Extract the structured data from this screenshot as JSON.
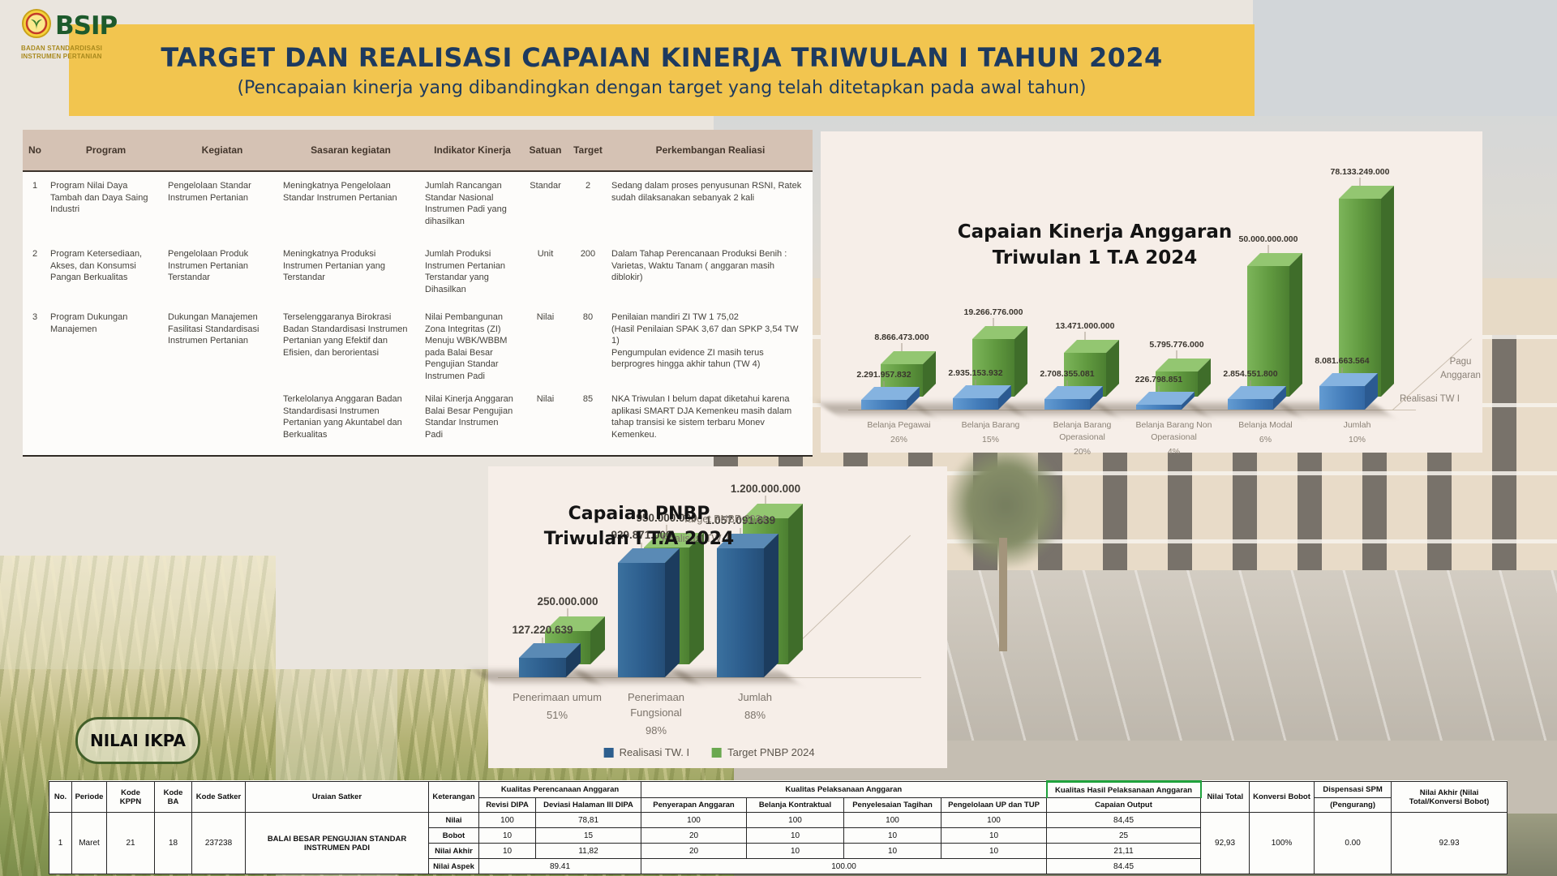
{
  "logo": {
    "acronym": "BSIP",
    "org_line1": "BADAN STANDARDISASI",
    "org_line2": "INSTRUMEN PERTANIAN"
  },
  "banner": {
    "title": "TARGET DAN REALISASI CAPAIAN KINERJA TRIWULAN I TAHUN 2024",
    "subtitle": "(Pencapaian kinerja yang dibandingkan dengan target yang telah ditetapkan pada awal tahun)"
  },
  "kinerja_table": {
    "columns": [
      "No",
      "Program",
      "Kegiatan",
      "Sasaran kegiatan",
      "Indikator Kinerja",
      "Satuan",
      "Target",
      "Perkembangan Realiasi"
    ],
    "rows": [
      {
        "no": "1",
        "program": "Program Nilai Daya Tambah dan Daya Saing Industri",
        "kegiatan": "Pengelolaan Standar Instrumen Pertanian",
        "sasaran": "Meningkatnya Pengelolaan Standar Instrumen Pertanian",
        "indikator": "Jumlah Rancangan Standar Nasional Instrumen Padi yang dihasilkan",
        "satuan": "Standar",
        "target": "2",
        "realisasi": "Sedang dalam proses penyusunan RSNI, Ratek sudah dilaksanakan sebanyak 2 kali"
      },
      {
        "no": "2",
        "program": "Program Ketersediaan, Akses, dan Konsumsi Pangan Berkualitas",
        "kegiatan": "Pengelolaan Produk Instrumen Pertanian Terstandar",
        "sasaran": "Meningkatnya Produksi Instrumen Pertanian yang Terstandar",
        "indikator": "Jumlah Produksi Instrumen Pertanian Terstandar yang Dihasilkan",
        "satuan": "Unit",
        "target": "200",
        "realisasi": "Dalam Tahap Perencanaan Produksi Benih : Varietas, Waktu Tanam ( anggaran masih diblokir)"
      },
      {
        "no": "3",
        "program": "Program Dukungan Manajemen",
        "kegiatan": "Dukungan Manajemen Fasilitasi Standardisasi Instrumen Pertanian",
        "sasaran": "Terselenggaranya Birokrasi Badan Standardisasi Instrumen Pertanian yang Efektif dan Efisien, dan berorientasi",
        "indikator": "Nilai Pembangunan Zona Integritas (ZI) Menuju WBK/WBBM pada Balai Besar Pengujian Standar Instrumen Padi",
        "satuan": "Nilai",
        "target": "80",
        "realisasi": "Penilaian mandiri ZI TW 1 75,02\n(Hasil Penilaian SPAK 3,67 dan SPKP 3,54 TW 1)\nPengumpulan evidence ZI masih terus berprogres hingga akhir tahun (TW 4)"
      },
      {
        "no": "",
        "program": "",
        "kegiatan": "",
        "sasaran": "Terkelolanya Anggaran Badan Standardisasi Instrumen Pertanian yang Akuntabel dan Berkualitas",
        "indikator": "Nilai Kinerja Anggaran Balai Besar Pengujian Standar Instrumen Padi",
        "satuan": "Nilai",
        "target": "85",
        "realisasi": "NKA Triwulan I belum dapat diketahui karena aplikasi SMART DJA Kemenkeu masih dalam tahap transisi ke sistem terbaru Monev Kemenkeu."
      }
    ]
  },
  "chart_data": [
    {
      "type": "bar",
      "style": "3d-bar",
      "title": "Capaian Kinerja Anggaran\nTriwulan 1 T.A 2024",
      "categories": [
        "Belanja Pegawai",
        "Belanja Barang",
        "Belanja Barang Operasional",
        "Belanja Barang Non Operasional",
        "Belanja Modal",
        "Jumlah"
      ],
      "category_pcts": [
        "26%",
        "15%",
        "20%",
        "4%",
        "6%",
        "10%"
      ],
      "series": [
        {
          "name": "Pagu Anggaran",
          "color": "#6aa84f",
          "values": [
            8866473000,
            19266776000,
            13471000000,
            5795776000,
            50000000000,
            78133249000
          ],
          "labels": [
            "8.866.473.000",
            "19.266.776.000",
            "13.471.000.000",
            "5.795.776.000",
            "50.000.000.000",
            "78.133.249.000"
          ]
        },
        {
          "name": "Realisasi TW I",
          "color": "#4a86c8",
          "values": [
            2291957832,
            2935153932,
            2708355081,
            226798851,
            2854551800,
            8081663564
          ],
          "labels": [
            "2.291.957.832",
            "2.935.153.932",
            "2.708.355.081",
            "226.798.851",
            "2.854.551.800",
            "8.081.663.564"
          ]
        }
      ],
      "legend_position": "right-depth-axis",
      "ylim": [
        0,
        78133249000
      ],
      "grid": false
    },
    {
      "type": "bar",
      "style": "3d-bar",
      "title": "Capaian PNBP\nTriwulan I T.A 2024",
      "categories": [
        "Penerimaan umum",
        "Penerimaan Fungsional",
        "Jumlah"
      ],
      "category_pcts": [
        "51%",
        "98%",
        "88%"
      ],
      "series": [
        {
          "name": "Realisasi TW. I",
          "color": "#2e5f8e",
          "values": [
            127220639,
            929871000,
            1057091639
          ],
          "labels": [
            "127.220.639",
            "929.871.000",
            "1.057.091.639"
          ]
        },
        {
          "name": "Target PNBP 2024",
          "color": "#6aa84f",
          "values": [
            250000000,
            950000000,
            1200000000
          ],
          "labels": [
            "250.000.000",
            "950.000.000",
            "1.200.000.000"
          ]
        }
      ],
      "legend_position": "bottom",
      "ylim": [
        0,
        1200000000
      ],
      "grid": false
    }
  ],
  "ikpa": {
    "badge": "NILAI IKPA"
  },
  "ikpa_table": {
    "group_headers": {
      "perencanaan": "Kualitas Perencanaan Anggaran",
      "pelaksanaan": "Kualitas Pelaksanaan Anggaran",
      "hasil": "Kualitas Hasil Pelaksanaan Anggaran"
    },
    "columns": {
      "no": "No.",
      "periode": "Periode",
      "kode_kppn": "Kode KPPN",
      "kode_ba": "Kode BA",
      "kode_satker": "Kode Satker",
      "uraian": "Uraian Satker",
      "keterangan": "Keterangan",
      "revisi": "Revisi DIPA",
      "deviasi": "Deviasi Halaman III DIPA",
      "penyerapan": "Penyerapan Anggaran",
      "kontraktual": "Belanja Kontraktual",
      "tagihan": "Penyelesaian Tagihan",
      "up_tup": "Pengelolaan UP dan TUP",
      "capaian": "Capaian Output",
      "nilai_total": "Nilai Total",
      "konversi": "Konversi Bobot",
      "dispensasi": "Dispensasi SPM",
      "pengurang": "(Pengurang)",
      "nilai_akhir": "Nilai Akhir (Nilai Total/Konversi Bobot)"
    },
    "row": {
      "no": "1",
      "periode": "Maret",
      "kode_kppn": "21",
      "kode_ba": "18",
      "kode_satker": "237238",
      "uraian": "BALAI BESAR PENGUJIAN STANDAR INSTRUMEN PADI",
      "nilai_total": "92,93",
      "konversi": "100%",
      "dispensasi": "0.00",
      "nilai_akhir": "92.93"
    },
    "metrics": [
      {
        "label": "Nilai",
        "values": [
          "100",
          "78,81",
          "100",
          "100",
          "100",
          "100",
          "84,45"
        ]
      },
      {
        "label": "Bobot",
        "values": [
          "10",
          "15",
          "20",
          "10",
          "10",
          "10",
          "25"
        ]
      },
      {
        "label": "Nilai Akhir",
        "values": [
          "10",
          "11,82",
          "20",
          "10",
          "10",
          "10",
          "21,11"
        ]
      }
    ],
    "aspek": {
      "label": "Nilai Aspek",
      "perencanaan": "89.41",
      "pelaksanaan": "100.00",
      "hasil": "84.45"
    }
  }
}
